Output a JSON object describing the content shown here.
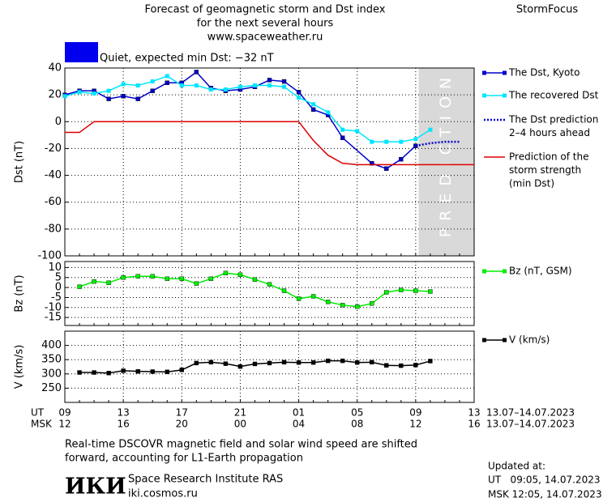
{
  "header": {
    "title_lines": [
      "Forecast of geomagnetic storm and Dst index",
      "for the next several hours",
      "www.spaceweather.ru"
    ],
    "brand": "StormFocus",
    "status_color": "#0000ee",
    "status": "Quiet, expected min Dst: −32 nT"
  },
  "time_axis": {
    "xlim": [
      0,
      28
    ],
    "ut_label": "UT",
    "msk_label": "MSK",
    "ut_ticks": [
      {
        "value": 0,
        "label": "09"
      },
      {
        "value": 4,
        "label": "13"
      },
      {
        "value": 8,
        "label": "17"
      },
      {
        "value": 12,
        "label": "21"
      },
      {
        "value": 16,
        "label": "01"
      },
      {
        "value": 20,
        "label": "05"
      },
      {
        "value": 24,
        "label": "09"
      },
      {
        "value": 28,
        "label": "13"
      }
    ],
    "msk_ticks": [
      {
        "value": 0,
        "label": "12"
      },
      {
        "value": 4,
        "label": "16"
      },
      {
        "value": 8,
        "label": "20"
      },
      {
        "value": 12,
        "label": "00"
      },
      {
        "value": 16,
        "label": "04"
      },
      {
        "value": 20,
        "label": "08"
      },
      {
        "value": 24,
        "label": "12"
      },
      {
        "value": 28,
        "label": "16"
      }
    ],
    "ut_range": "13.07–14.07.2023",
    "msk_range": "13.07–14.07.2023"
  },
  "chart_data": [
    {
      "type": "line",
      "ylabel": "Dst (nT)",
      "ylim": [
        -100,
        40
      ],
      "yticks": [
        40,
        20,
        0,
        -20,
        -40,
        -60,
        -80,
        -100
      ],
      "grid": true,
      "prediction_region": [
        24.2,
        28
      ],
      "prediction_label": "PREDICTION",
      "series": [
        {
          "name": [
            "The Dst, Kyoto"
          ],
          "color": "#0000cc",
          "marker": "square",
          "style": "solid",
          "x": [
            0,
            1,
            2,
            3,
            4,
            5,
            6,
            7,
            8,
            9,
            10,
            11,
            12,
            13,
            14,
            15,
            16,
            17,
            18,
            19,
            21,
            22,
            23,
            24
          ],
          "values": [
            20,
            23,
            23,
            17,
            19,
            17,
            23,
            29,
            29,
            37,
            25,
            23,
            24,
            26,
            31,
            30,
            22,
            9,
            5,
            -12,
            -31,
            -35,
            -28,
            -18
          ]
        },
        {
          "name": [
            "The recovered Dst"
          ],
          "color": "#00e5ff",
          "marker": "square",
          "style": "solid",
          "x": [
            0,
            1,
            2,
            3,
            4,
            5,
            6,
            7,
            8,
            9,
            10,
            11,
            12,
            13,
            14,
            15,
            16,
            17,
            18,
            19,
            20,
            21,
            22,
            23,
            24,
            25
          ],
          "values": [
            19,
            22,
            21,
            23,
            28,
            27,
            30,
            34,
            27,
            27,
            24,
            24,
            26,
            27,
            27,
            26,
            18,
            13,
            7,
            -6,
            -7,
            -15,
            -15,
            -15,
            -13,
            -6
          ]
        },
        {
          "name": [
            "The Dst prediction",
            "2–4 hours ahead"
          ],
          "color": "#0000cc",
          "marker": "none",
          "style": "dotted",
          "x": [
            24,
            25,
            26,
            27
          ],
          "values": [
            -18,
            -16,
            -15,
            -15
          ]
        },
        {
          "name": [
            "Prediction of the",
            "storm strength",
            "(min Dst)"
          ],
          "color": "#dd0000",
          "marker": "none",
          "style": "solid",
          "x": [
            0,
            1,
            2,
            16,
            17,
            18,
            19,
            20,
            28
          ],
          "values": [
            -8,
            -8,
            0,
            0,
            -14,
            -25,
            -31,
            -32,
            -32
          ]
        }
      ]
    },
    {
      "type": "line",
      "ylabel": "Bz (nT)",
      "ylim": [
        -19,
        13
      ],
      "yticks": [
        10,
        5,
        0,
        -5,
        -10,
        -15
      ],
      "grid": true,
      "series": [
        {
          "name": [
            "Bz (nT, GSM)"
          ],
          "color": "#00ee00",
          "marker": "square",
          "style": "solid",
          "x": [
            1,
            2,
            3,
            4,
            5,
            6,
            7,
            8,
            9,
            10,
            11,
            12,
            13,
            14,
            15,
            16,
            17,
            18,
            19,
            20,
            21,
            22,
            23,
            24,
            25
          ],
          "values": [
            0.4,
            3,
            2.4,
            5,
            5.6,
            5.6,
            4.4,
            4.4,
            2,
            4.4,
            7.2,
            6.4,
            4,
            1.6,
            -1.6,
            -5.6,
            -4.4,
            -7.2,
            -8.8,
            -9.6,
            -8,
            -2.4,
            -1.2,
            -1.6,
            -2
          ]
        }
      ]
    },
    {
      "type": "line",
      "ylabel": "V (km/s)",
      "ylim": [
        200,
        450
      ],
      "yticks": [
        400,
        350,
        300,
        250
      ],
      "grid": true,
      "series": [
        {
          "name": [
            "V (km/s)"
          ],
          "color": "#000000",
          "marker": "square",
          "style": "solid",
          "x": [
            1,
            2,
            3,
            4,
            5,
            6,
            7,
            8,
            9,
            10,
            11,
            12,
            13,
            14,
            15,
            16,
            17,
            18,
            19,
            20,
            21,
            22,
            23,
            24,
            25
          ],
          "values": [
            305,
            305,
            303,
            311,
            309,
            308,
            307,
            314,
            338,
            341,
            336,
            326,
            335,
            338,
            341,
            340,
            340,
            346,
            346,
            340,
            341,
            330,
            329,
            331,
            345
          ]
        }
      ]
    }
  ],
  "footer": {
    "note_lines": [
      "Real-time DSCOVR magnetic field and solar wind speed are shifted",
      "forward, accounting for L1-Earth propagation"
    ],
    "logo": "ИКИ",
    "institute": "Space Research Institute RAS",
    "site": "iki.cosmos.ru",
    "updated_label": "Updated at:",
    "updated_ut": "UT   09:05, 14.07.2023",
    "updated_msk": "MSK 12:05, 14.07.2023"
  }
}
